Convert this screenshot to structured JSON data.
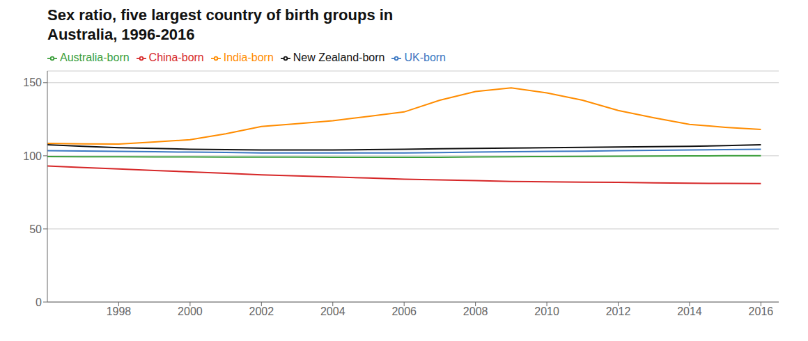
{
  "chart_data": {
    "type": "line",
    "title": "Sex ratio, five largest country of birth groups in\nAustralia, 1996-2016",
    "x": [
      1996,
      1997,
      1998,
      1999,
      2000,
      2001,
      2002,
      2003,
      2004,
      2005,
      2006,
      2007,
      2008,
      2009,
      2010,
      2011,
      2012,
      2013,
      2014,
      2015,
      2016
    ],
    "series": [
      {
        "name": "Australia-born",
        "color": "#3a9e3a",
        "values": [
          99.5,
          99.4,
          99.3,
          99.25,
          99.2,
          99.15,
          99.1,
          99.05,
          99.0,
          99.0,
          99.0,
          99.0,
          99.2,
          99.3,
          99.5,
          99.6,
          99.7,
          99.8,
          99.9,
          100.0,
          100.0
        ]
      },
      {
        "name": "UK-born",
        "color": "#3a77c2",
        "values": [
          103.5,
          103.3,
          103.0,
          102.8,
          102.5,
          102.3,
          102.0,
          102.0,
          102.0,
          102.0,
          102.0,
          102.2,
          102.5,
          102.8,
          103.0,
          103.2,
          103.5,
          103.8,
          104.0,
          104.2,
          104.5
        ]
      },
      {
        "name": "New Zealand-born",
        "color": "#111111",
        "values": [
          107.5,
          106.5,
          105.5,
          105.0,
          104.5,
          104.2,
          104.0,
          104.0,
          104.0,
          104.2,
          104.5,
          104.8,
          105.0,
          105.3,
          105.5,
          105.8,
          106.0,
          106.2,
          106.5,
          107.0,
          107.5
        ]
      },
      {
        "name": "China-born",
        "color": "#d62728",
        "values": [
          93.0,
          92.0,
          91.0,
          90.0,
          89.0,
          88.0,
          87.0,
          86.2,
          85.5,
          84.8,
          84.0,
          83.5,
          83.0,
          82.5,
          82.2,
          82.0,
          81.8,
          81.5,
          81.3,
          81.1,
          81.0
        ]
      },
      {
        "name": "India-born",
        "color": "#ff8c00",
        "values": [
          108.5,
          108.2,
          108.0,
          109.5,
          111.0,
          115.0,
          120.0,
          122.0,
          124.0,
          127.0,
          130.0,
          138.0,
          144.0,
          146.5,
          143.0,
          138.0,
          131.0,
          126.0,
          121.5,
          119.5,
          118.0
        ]
      }
    ],
    "xlim": [
      1996,
      2016.5
    ],
    "xticks": [
      1998,
      2000,
      2002,
      2004,
      2006,
      2008,
      2010,
      2012,
      2014,
      2016
    ],
    "ylim": [
      0,
      158
    ],
    "yticks": [
      0,
      50,
      100,
      150
    ],
    "grid": true,
    "legend": "top left"
  }
}
